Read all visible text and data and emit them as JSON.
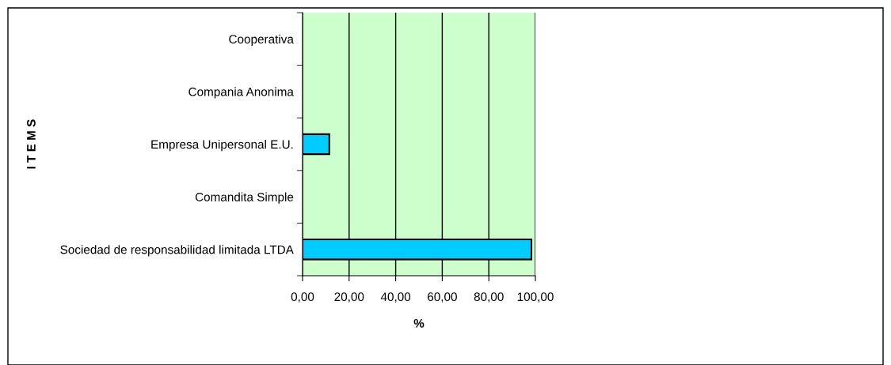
{
  "chart_data": {
    "type": "bar",
    "orientation": "horizontal",
    "xlabel": "%",
    "ylabel": "I T E M S",
    "categories": [
      "Cooperativa",
      "Compania Anonima",
      "Empresa Unipersonal E.U.",
      "Comandita Simple",
      "Sociedad de responsabilidad limitada LTDA"
    ],
    "values": [
      0,
      0,
      11.5,
      0,
      98.3
    ],
    "color": "#00ccff",
    "xlim": [
      0,
      100
    ],
    "xticks": [
      {
        "value": 0,
        "label": "0,00"
      },
      {
        "value": 20,
        "label": "20,00"
      },
      {
        "value": 40,
        "label": "40,00"
      },
      {
        "value": 60,
        "label": "60,00"
      },
      {
        "value": 80,
        "label": "80,00"
      },
      {
        "value": 100,
        "label": "100,00"
      }
    ],
    "grid": "x"
  }
}
